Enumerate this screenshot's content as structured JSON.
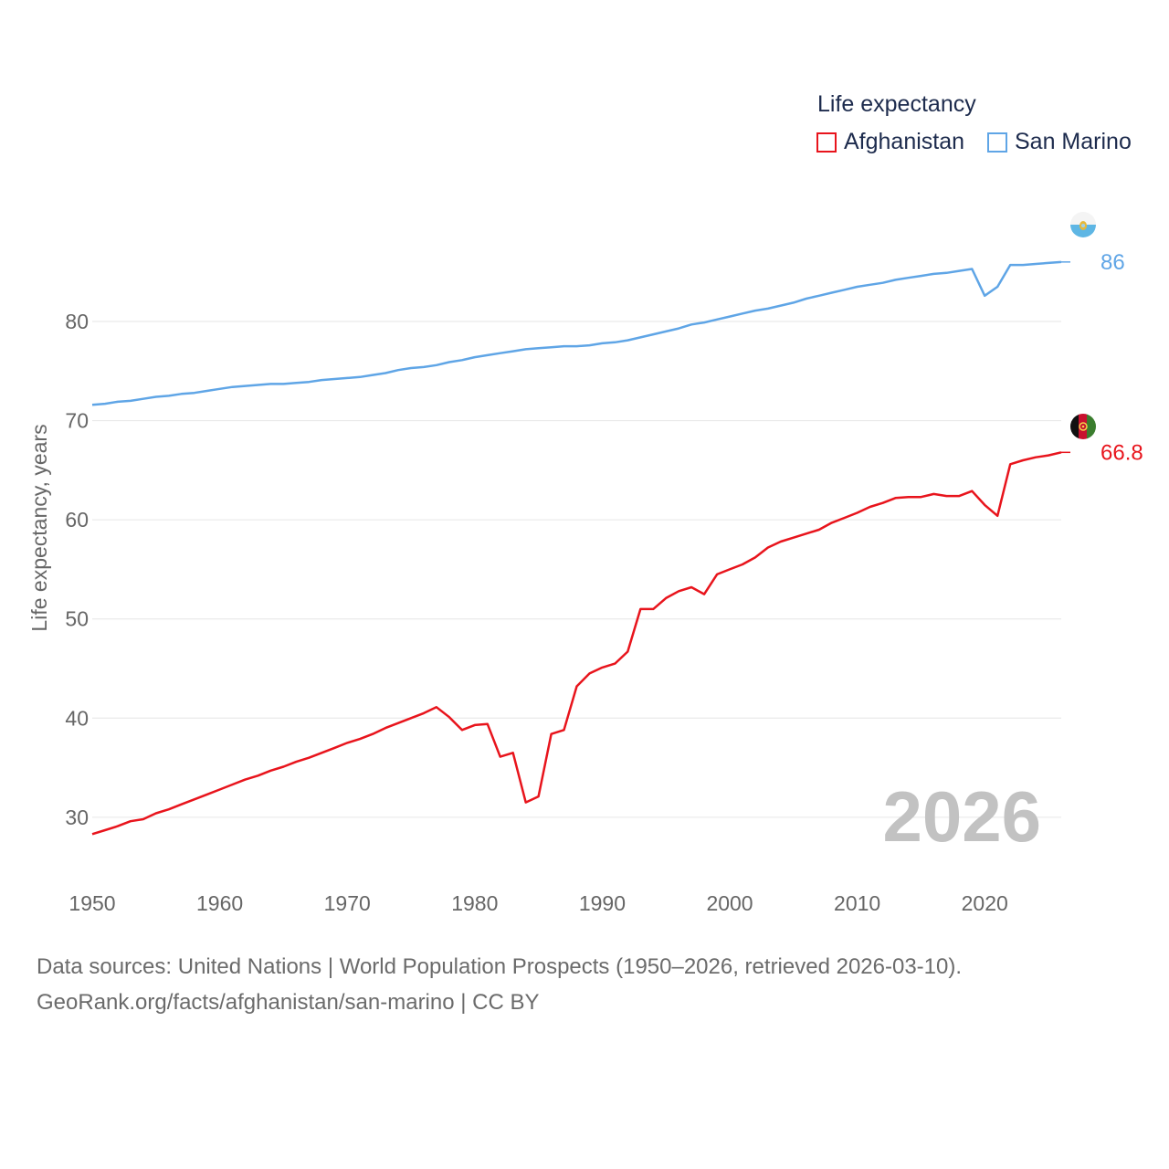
{
  "legend": {
    "title": "Life expectancy",
    "items": [
      {
        "label": "Afghanistan",
        "color": "#e8141c"
      },
      {
        "label": "San Marino",
        "color": "#5fa5e6"
      }
    ]
  },
  "sources": {
    "line1": "Data sources: United Nations | World Population Prospects (1950–2026, retrieved 2026-03-10).",
    "line2": "GeoRank.org/facts/afghanistan/san-marino | CC BY"
  },
  "chart_data": {
    "type": "line",
    "ylabel": "Life expectancy, years",
    "xlabel": "",
    "current_year_label": "2026",
    "xlim": [
      1950,
      2026
    ],
    "ylim": [
      24,
      94
    ],
    "x_ticks": [
      1950,
      1960,
      1970,
      1980,
      1990,
      2000,
      2010,
      2020
    ],
    "y_ticks": [
      30,
      40,
      50,
      60,
      70,
      80
    ],
    "grid": true,
    "x": [
      1950,
      1951,
      1952,
      1953,
      1954,
      1955,
      1956,
      1957,
      1958,
      1959,
      1960,
      1961,
      1962,
      1963,
      1964,
      1965,
      1966,
      1967,
      1968,
      1969,
      1970,
      1971,
      1972,
      1973,
      1974,
      1975,
      1976,
      1977,
      1978,
      1979,
      1980,
      1981,
      1982,
      1983,
      1984,
      1985,
      1986,
      1987,
      1988,
      1989,
      1990,
      1991,
      1992,
      1993,
      1994,
      1995,
      1996,
      1997,
      1998,
      1999,
      2000,
      2001,
      2002,
      2003,
      2004,
      2005,
      2006,
      2007,
      2008,
      2009,
      2010,
      2011,
      2012,
      2013,
      2014,
      2015,
      2016,
      2017,
      2018,
      2019,
      2020,
      2021,
      2022,
      2023,
      2024,
      2025,
      2026
    ],
    "series": [
      {
        "name": "Afghanistan",
        "color": "#e8141c",
        "end_label": "66.8",
        "values": [
          28.3,
          28.7,
          29.1,
          29.6,
          29.8,
          30.4,
          30.8,
          31.3,
          31.8,
          32.3,
          32.8,
          33.3,
          33.8,
          34.2,
          34.7,
          35.1,
          35.6,
          36.0,
          36.5,
          37.0,
          37.5,
          37.9,
          38.4,
          39.0,
          39.5,
          40.0,
          40.5,
          41.1,
          40.1,
          38.8,
          39.3,
          39.4,
          36.1,
          36.5,
          31.5,
          32.1,
          38.4,
          38.8,
          43.2,
          44.5,
          45.1,
          45.5,
          46.7,
          51.0,
          51.0,
          52.1,
          52.8,
          53.2,
          52.5,
          54.5,
          55.0,
          55.5,
          56.2,
          57.2,
          57.8,
          58.2,
          58.6,
          59.0,
          59.7,
          60.2,
          60.7,
          61.3,
          61.7,
          62.2,
          62.3,
          62.3,
          62.6,
          62.4,
          62.4,
          62.9,
          61.5,
          60.4,
          65.6,
          66.0,
          66.3,
          66.5,
          66.8
        ]
      },
      {
        "name": "San Marino",
        "color": "#5fa5e6",
        "end_label": "86",
        "values": [
          71.6,
          71.7,
          71.9,
          72.0,
          72.2,
          72.4,
          72.5,
          72.7,
          72.8,
          73.0,
          73.2,
          73.4,
          73.5,
          73.6,
          73.7,
          73.7,
          73.8,
          73.9,
          74.1,
          74.2,
          74.3,
          74.4,
          74.6,
          74.8,
          75.1,
          75.3,
          75.4,
          75.6,
          75.9,
          76.1,
          76.4,
          76.6,
          76.8,
          77.0,
          77.2,
          77.3,
          77.4,
          77.5,
          77.5,
          77.6,
          77.8,
          77.9,
          78.1,
          78.4,
          78.7,
          79.0,
          79.3,
          79.7,
          79.9,
          80.2,
          80.5,
          80.8,
          81.1,
          81.3,
          81.6,
          81.9,
          82.3,
          82.6,
          82.9,
          83.2,
          83.5,
          83.7,
          83.9,
          84.2,
          84.4,
          84.6,
          84.8,
          84.9,
          85.1,
          85.3,
          82.6,
          83.5,
          85.7,
          85.7,
          85.8,
          85.9,
          86.0
        ]
      }
    ]
  }
}
